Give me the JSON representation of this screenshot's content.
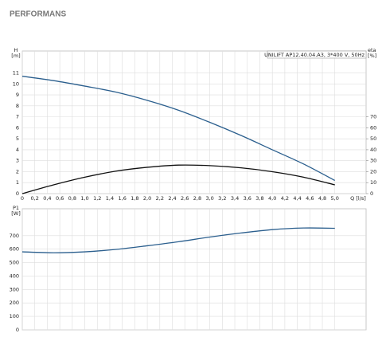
{
  "title": "PERFORMANS",
  "chart_data": [
    {
      "type": "line",
      "annotation": "UNILIFT AP12.40.04.A3, 3*400 V, 50Hz",
      "ylabel": "H",
      "yunit": "[m]",
      "y2label": "eta",
      "y2unit": "[%]",
      "xlabel": "Q [l/s]",
      "x": [
        0,
        0.5,
        1.0,
        1.5,
        2.0,
        2.5,
        3.0,
        3.5,
        4.0,
        4.5,
        5.0
      ],
      "series": [
        {
          "color": "#2b5f8e",
          "values": [
            10.7,
            10.3,
            9.8,
            9.25,
            8.5,
            7.6,
            6.5,
            5.3,
            4.0,
            2.7,
            1.2
          ]
        },
        {
          "color": "#111111",
          "axis": "y2",
          "values": [
            0,
            8,
            15,
            20.5,
            24,
            26,
            25.5,
            23.5,
            20,
            15,
            8
          ]
        }
      ],
      "xlim": [
        0,
        5.5
      ],
      "xticks": [
        0,
        {
          "value": 0.2,
          "label": "0,2"
        },
        {
          "value": 0.4,
          "label": "0,4"
        },
        {
          "value": 0.6,
          "label": "0,6"
        },
        {
          "value": 0.8,
          "label": "0,8"
        },
        {
          "value": 1.0,
          "label": "1,0"
        },
        {
          "value": 1.2,
          "label": "1,2"
        },
        {
          "value": 1.4,
          "label": "1,4"
        },
        {
          "value": 1.6,
          "label": "1,6"
        },
        {
          "value": 1.8,
          "label": "1,8"
        },
        {
          "value": 2.0,
          "label": "2,0"
        },
        {
          "value": 2.2,
          "label": "2,2"
        },
        {
          "value": 2.4,
          "label": "2,4"
        },
        {
          "value": 2.6,
          "label": "2,6"
        },
        {
          "value": 2.8,
          "label": "2,8"
        },
        {
          "value": 3.0,
          "label": "3,0"
        },
        {
          "value": 3.2,
          "label": "3,2"
        },
        {
          "value": 3.4,
          "label": "3,4"
        },
        {
          "value": 3.6,
          "label": "3,6"
        },
        {
          "value": 3.8,
          "label": "3,8"
        },
        {
          "value": 4.0,
          "label": "4,0"
        },
        {
          "value": 4.2,
          "label": "4,2"
        },
        {
          "value": 4.4,
          "label": "4,4"
        },
        {
          "value": 4.6,
          "label": "4,6"
        },
        {
          "value": 4.8,
          "label": "4,8"
        },
        {
          "value": 5.0,
          "label": "5,0"
        }
      ],
      "ylim": [
        0,
        13
      ],
      "yticks": [
        0,
        1,
        2,
        3,
        4,
        5,
        6,
        7,
        8,
        9,
        10,
        11
      ],
      "y2lim": [
        0,
        130
      ],
      "y2ticks": [
        0,
        10,
        20,
        30,
        40,
        50,
        60,
        70
      ],
      "grid": true
    },
    {
      "type": "line",
      "ylabel": "P1",
      "yunit": "[W]",
      "x": [
        0,
        0.5,
        1.0,
        1.5,
        2.0,
        2.5,
        3.0,
        3.5,
        4.0,
        4.5,
        5.0
      ],
      "series": [
        {
          "color": "#2b5f8e",
          "values": [
            580,
            573,
            580,
            598,
            625,
            655,
            690,
            720,
            745,
            757,
            755
          ]
        }
      ],
      "xlim": [
        0,
        5.5
      ],
      "xticks": [
        0,
        0.2,
        0.4,
        0.6,
        0.8,
        1.0,
        1.2,
        1.4,
        1.6,
        1.8,
        2.0,
        2.2,
        2.4,
        2.6,
        2.8,
        3.0,
        3.2,
        3.4,
        3.6,
        3.8,
        4.0,
        4.2,
        4.4,
        4.6,
        4.8,
        5.0
      ],
      "ylim": [
        0,
        900
      ],
      "yticks": [
        0,
        100,
        200,
        300,
        400,
        500,
        600,
        700
      ],
      "grid": true
    }
  ]
}
